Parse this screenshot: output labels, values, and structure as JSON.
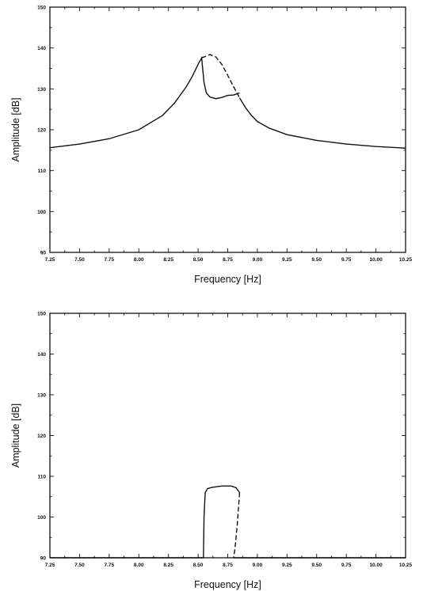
{
  "chart_data": [
    {
      "type": "line",
      "title": "",
      "xlabel": "Frequency [Hz]",
      "ylabel": "Amplitude [dB]",
      "xlim": [
        7.25,
        10.25
      ],
      "ylim": [
        90,
        150
      ],
      "xticks": [
        "7.25",
        "7.50",
        "7.75",
        "8.00",
        "8.25",
        "8.50",
        "8.75",
        "9.00",
        "9.25",
        "9.50",
        "9.75",
        "10.00",
        "10.25"
      ],
      "yticks": [
        "90",
        "100",
        "110",
        "120",
        "130",
        "140",
        "150"
      ],
      "grid": false,
      "series": [
        {
          "style": "solid",
          "x": [
            7.25,
            7.5,
            7.75,
            8.0,
            8.2,
            8.3,
            8.4,
            8.45,
            8.5,
            8.53,
            8.55,
            8.57,
            8.6,
            8.65,
            8.7,
            8.75,
            8.8,
            8.85
          ],
          "y": [
            115.6,
            116.5,
            117.8,
            120.0,
            123.5,
            126.5,
            130.5,
            133.0,
            136.0,
            137.6,
            131.5,
            129.0,
            128.0,
            127.6,
            127.9,
            128.4,
            128.5,
            129.0
          ]
        },
        {
          "style": "dashed",
          "x": [
            8.53,
            8.57,
            8.6,
            8.65,
            8.7,
            8.75,
            8.8,
            8.85
          ],
          "y": [
            137.6,
            138.0,
            138.4,
            137.8,
            136.0,
            133.3,
            130.5,
            127.8
          ]
        },
        {
          "style": "solid",
          "x": [
            8.85,
            8.9,
            8.95,
            9.0,
            9.1,
            9.25,
            9.5,
            9.75,
            10.0,
            10.25
          ],
          "y": [
            127.8,
            125.4,
            123.5,
            122.0,
            120.4,
            118.8,
            117.4,
            116.5,
            115.9,
            115.5
          ]
        }
      ]
    },
    {
      "type": "line",
      "title": "",
      "xlabel": "Frequency [Hz]",
      "ylabel": "Amplitude [dB]",
      "xlim": [
        7.25,
        10.25
      ],
      "ylim": [
        90,
        150
      ],
      "xticks": [
        "7.25",
        "7.50",
        "7.75",
        "8.00",
        "8.25",
        "8.50",
        "8.75",
        "9.00",
        "9.25",
        "9.50",
        "9.75",
        "10.00",
        "10.25"
      ],
      "yticks": [
        "90",
        "100",
        "110",
        "120",
        "130",
        "140",
        "150"
      ],
      "grid": false,
      "series": [
        {
          "style": "solid",
          "x": [
            7.25,
            8.545,
            8.55,
            8.56,
            8.58,
            8.62,
            8.7,
            8.78,
            8.82,
            8.85
          ],
          "y": [
            90,
            90,
            100.0,
            106.0,
            107.0,
            107.3,
            107.6,
            107.6,
            107.2,
            106.0
          ]
        },
        {
          "style": "dashed",
          "x": [
            8.85,
            8.84,
            8.83,
            8.82,
            8.81,
            8.8
          ],
          "y": [
            106.0,
            102.0,
            98.0,
            95.0,
            92.0,
            90.0
          ]
        },
        {
          "style": "solid",
          "x": [
            8.8,
            10.25
          ],
          "y": [
            90,
            90
          ]
        }
      ]
    }
  ]
}
